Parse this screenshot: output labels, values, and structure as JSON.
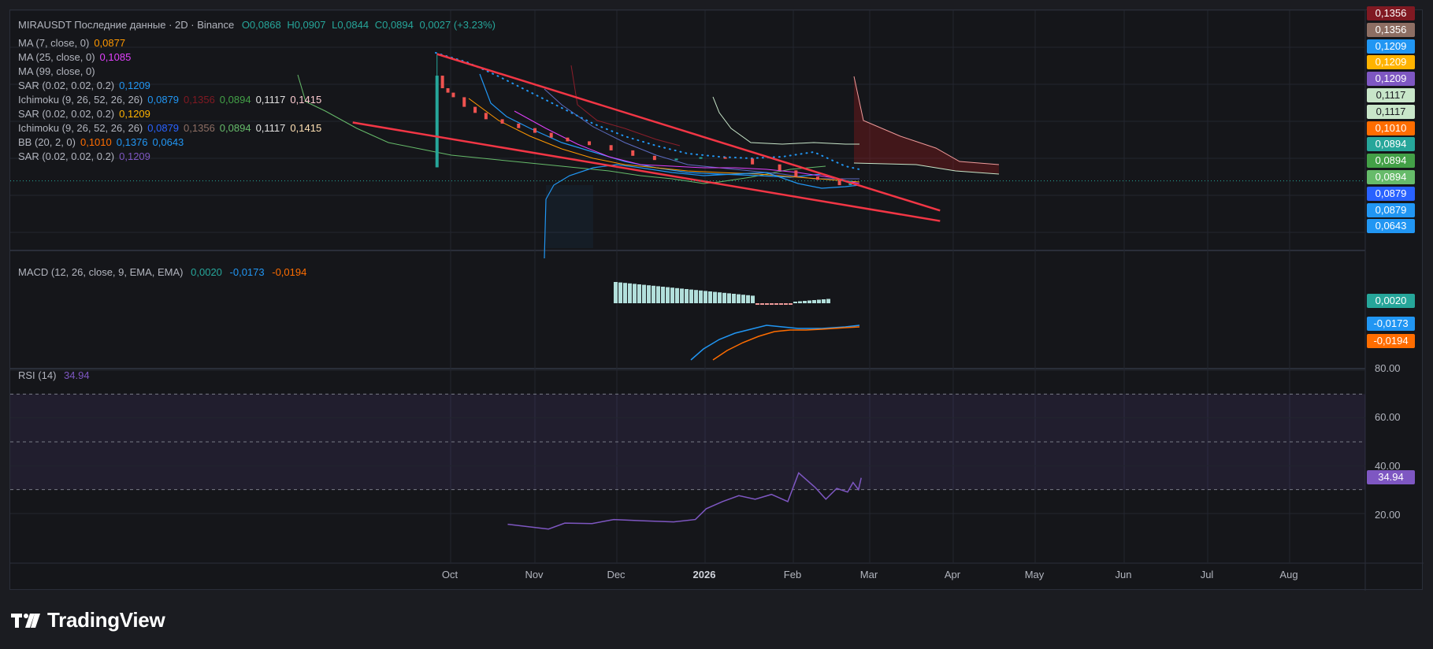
{
  "header": {
    "symbol": "MIRAUSDT Последние данные · 2D · Binance",
    "open": "O0,0868",
    "high": "H0,0907",
    "low": "L0,0844",
    "close": "C0,0894",
    "change": "0,0027 (+3.23%)"
  },
  "indicators": [
    {
      "label": "MA (7, close, 0)",
      "values": [
        {
          "text": "0,0877",
          "color": "#ff9800"
        }
      ]
    },
    {
      "label": "MA (25, close, 0)",
      "values": [
        {
          "text": "0,1085",
          "color": "#e040fb"
        }
      ]
    },
    {
      "label": "MA (99, close, 0)",
      "values": []
    },
    {
      "label": "SAR (0.02, 0.02, 0.2)",
      "values": [
        {
          "text": "0,1209",
          "color": "#2196f3"
        }
      ]
    },
    {
      "label": "Ichimoku (9, 26, 52, 26, 26)",
      "values": [
        {
          "text": "0,0879",
          "color": "#2196f3"
        },
        {
          "text": "0,1356",
          "color": "#801922"
        },
        {
          "text": "0,0894",
          "color": "#43a047"
        },
        {
          "text": "0,1117",
          "color": "#e0e0e0"
        },
        {
          "text": "0,1415",
          "color": "#ffcdd2"
        }
      ]
    },
    {
      "label": "SAR (0.02, 0.02, 0.2)",
      "values": [
        {
          "text": "0,1209",
          "color": "#ffb300"
        }
      ]
    },
    {
      "label": "Ichimoku (9, 26, 52, 26, 26)",
      "values": [
        {
          "text": "0,0879",
          "color": "#2962ff"
        },
        {
          "text": "0,1356",
          "color": "#8d6e63"
        },
        {
          "text": "0,0894",
          "color": "#66bb6a"
        },
        {
          "text": "0,1117",
          "color": "#e0e0e0"
        },
        {
          "text": "0,1415",
          "color": "#ffe0b2"
        }
      ]
    },
    {
      "label": "BB (20, 2, 0)",
      "values": [
        {
          "text": "0,1010",
          "color": "#ff6d00"
        },
        {
          "text": "0,1376",
          "color": "#2196f3"
        },
        {
          "text": "0,0643",
          "color": "#2196f3"
        }
      ]
    },
    {
      "label": "SAR (0.02, 0.02, 0.2)",
      "values": [
        {
          "text": "0,1209",
          "color": "#7e57c2"
        }
      ]
    }
  ],
  "price_tags": [
    {
      "text": "0,1356",
      "color": "#801922"
    },
    {
      "text": "0,1356",
      "color": "#8d6e63"
    },
    {
      "text": "0,1209",
      "color": "#2196f3"
    },
    {
      "text": "0,1209",
      "color": "#ffb300"
    },
    {
      "text": "0,1209",
      "color": "#7e57c2"
    },
    {
      "text": "0,1117",
      "color": "#c8e6c9"
    },
    {
      "text": "0,1117",
      "color": "#c8e6c9"
    },
    {
      "text": "0,1010",
      "color": "#ff6d00"
    },
    {
      "text": "0,0894",
      "color": "#26a69a"
    },
    {
      "text": "0,0894",
      "color": "#43a047"
    },
    {
      "text": "0,0894",
      "color": "#66bb6a"
    },
    {
      "text": "0,0879",
      "color": "#2962ff"
    },
    {
      "text": "0,0879",
      "color": "#2196f3"
    },
    {
      "text": "0,0643",
      "color": "#2196f3"
    }
  ],
  "macd": {
    "label": "MACD (12, 26, close, 9, EMA, EMA)",
    "hist": "0,0020",
    "macd": "-0,0173",
    "signal": "-0,0194",
    "colors": {
      "hist": "#26a69a",
      "macd": "#2196f3",
      "signal": "#ff6d00"
    }
  },
  "rsi": {
    "label": "RSI (14)",
    "value": "34.94",
    "color": "#7e57c2",
    "ticks": [
      "80.00",
      "60.00",
      "40.00",
      "20.00"
    ]
  },
  "x_axis": [
    "Oct",
    "Nov",
    "Dec",
    "2026",
    "Feb",
    "Mar",
    "Apr",
    "May",
    "Jun",
    "Jul",
    "Aug"
  ],
  "brand": "TradingView",
  "chart_data": {
    "type": "line",
    "price_series": [
      {
        "x": "2025-09-26",
        "open": 0.098,
        "close": 0.183,
        "high": 0.212
      },
      {
        "x": "2025-09-28",
        "open": 0.183,
        "close": 0.168
      },
      {
        "x": "2025-09-30",
        "open": 0.168,
        "close": 0.163
      },
      {
        "x": "2025-10-02",
        "open": 0.163,
        "close": 0.158
      },
      {
        "x": "2025-10-06",
        "open": 0.158,
        "close": 0.148
      },
      {
        "x": "2025-10-10",
        "open": 0.148,
        "close": 0.142
      },
      {
        "x": "2025-10-14",
        "open": 0.142,
        "close": 0.136
      },
      {
        "x": "2025-10-20",
        "open": 0.136,
        "close": 0.132
      },
      {
        "x": "2025-10-26",
        "open": 0.132,
        "close": 0.128
      },
      {
        "x": "2025-11-01",
        "open": 0.128,
        "close": 0.124
      },
      {
        "x": "2025-11-07",
        "open": 0.124,
        "close": 0.12
      },
      {
        "x": "2025-11-13",
        "open": 0.12,
        "close": 0.117
      },
      {
        "x": "2025-11-21",
        "open": 0.117,
        "close": 0.114
      },
      {
        "x": "2025-11-29",
        "open": 0.114,
        "close": 0.11
      },
      {
        "x": "2025-12-07",
        "open": 0.11,
        "close": 0.106
      },
      {
        "x": "2025-12-15",
        "open": 0.106,
        "close": 0.103
      },
      {
        "x": "2025-12-23",
        "open": 0.103,
        "close": 0.104
      },
      {
        "x": "2026-01-01",
        "open": 0.104,
        "close": 0.105
      },
      {
        "x": "2026-01-10",
        "open": 0.105,
        "close": 0.104
      },
      {
        "x": "2026-01-20",
        "open": 0.104,
        "close": 0.1
      },
      {
        "x": "2026-01-30",
        "open": 0.1,
        "close": 0.096
      },
      {
        "x": "2026-02-05",
        "open": 0.096,
        "close": 0.092
      },
      {
        "x": "2026-02-13",
        "open": 0.092,
        "close": 0.09
      },
      {
        "x": "2026-02-21",
        "open": 0.09,
        "close": 0.0868
      },
      {
        "x": "2026-02-25",
        "open": 0.0868,
        "close": 0.0894
      }
    ],
    "trendlines": [
      {
        "from": {
          "x": "2025-09-26",
          "y": 0.212
        },
        "to": {
          "x": "2026-03-30",
          "y": 0.073
        }
      },
      {
        "from": {
          "x": "2025-08-26",
          "y": 0.133
        },
        "to": {
          "x": "2026-03-30",
          "y": 0.068
        }
      }
    ],
    "rsi_values": [
      {
        "x": "2025-10-22",
        "y": 15.5
      },
      {
        "x": "2025-11-06",
        "y": 13.5
      },
      {
        "x": "2025-11-12",
        "y": 16
      },
      {
        "x": "2025-11-22",
        "y": 15.8
      },
      {
        "x": "2025-11-30",
        "y": 17.5
      },
      {
        "x": "2025-12-10",
        "y": 17
      },
      {
        "x": "2025-12-22",
        "y": 16.5
      },
      {
        "x": "2025-12-30",
        "y": 17.5
      },
      {
        "x": "2026-01-03",
        "y": 22
      },
      {
        "x": "2026-01-09",
        "y": 25
      },
      {
        "x": "2026-01-15",
        "y": 27.5
      },
      {
        "x": "2026-01-21",
        "y": 26
      },
      {
        "x": "2026-01-27",
        "y": 28
      },
      {
        "x": "2026-02-02",
        "y": 25
      },
      {
        "x": "2026-02-06",
        "y": 37
      },
      {
        "x": "2026-02-12",
        "y": 31
      },
      {
        "x": "2026-02-16",
        "y": 26
      },
      {
        "x": "2026-02-20",
        "y": 30.5
      },
      {
        "x": "2026-02-24",
        "y": 29
      },
      {
        "x": "2026-02-26",
        "y": 33
      },
      {
        "x": "2026-02-28",
        "y": 30
      },
      {
        "x": "2026-03-01",
        "y": 34.94
      }
    ],
    "rsi_bands": [
      30,
      50,
      70
    ],
    "ylim_price": [
      0.0643,
      0.2185
    ]
  }
}
